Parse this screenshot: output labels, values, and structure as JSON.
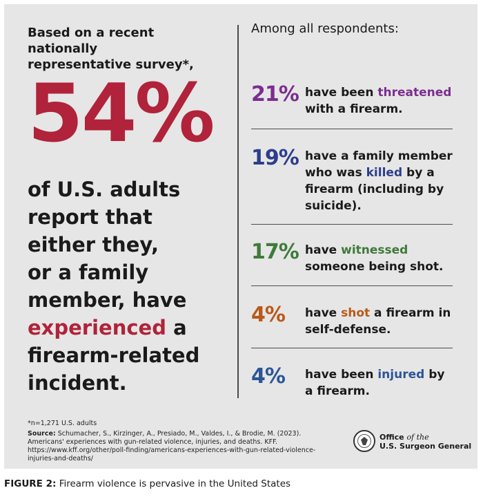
{
  "intro": {
    "line1": "Based on a recent nationally",
    "line2": "representative survey*,"
  },
  "headline_pct": "54%",
  "lead": {
    "l1": "of U.S. adults",
    "l2": "report that",
    "l3": "either they,",
    "l4": "or a family",
    "l5": "member, have",
    "l6_hl": "experienced",
    "l6_rest": " a",
    "l7": "firearm-related",
    "l8": "incident."
  },
  "right_heading": "Among all respondents:",
  "stats": [
    {
      "pct": "21%",
      "color": "#7b2e8f",
      "parts": [
        "have been ",
        "threatened",
        " with a firearm."
      ]
    },
    {
      "pct": "19%",
      "color": "#2c3e8c",
      "parts": [
        "have a family member who was ",
        "killed",
        " by a firearm (including by suicide)."
      ]
    },
    {
      "pct": "17%",
      "color": "#3f7a3a",
      "parts": [
        "have ",
        "witnessed",
        " someone being shot."
      ]
    },
    {
      "pct": "4%",
      "color": "#b85a18",
      "parts": [
        "have ",
        "shot",
        " a firearm in self-defense."
      ]
    },
    {
      "pct": "4%",
      "color": "#2c5596",
      "parts": [
        "have been ",
        "injured",
        " by a firearm."
      ]
    }
  ],
  "footnote": "*n=1,271 U.S. adults",
  "source": {
    "label": "Source:",
    "text": " Schumacher, S., Kirzinger, A., Presiado, M., Valdes, I., & Brodie, M. (2023). Americans' experiences with gun-related violence, injuries, and deaths. KFF. https://www.kff.org/other/poll-finding/americans-experiences-with-gun-related-violence-injuries-and-deaths/"
  },
  "org": {
    "line1_a": "Office ",
    "line1_b": "of the",
    "line2": "U.S. Surgeon General"
  },
  "caption": {
    "label": "FIGURE 2:",
    "text": " Firearm violence is pervasive in the United States"
  },
  "colors": {
    "accent_red": "#b0233a",
    "panel_bg": "#e6e6e6"
  }
}
